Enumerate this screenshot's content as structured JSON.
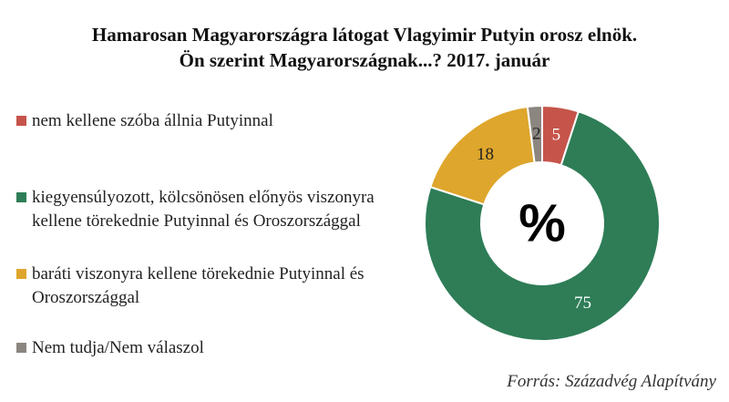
{
  "title": {
    "line1": "Hamarosan Magyarországra látogat Vlagyimir Putyin orosz elnök.",
    "line2": "Ön szerint Magyarországnak...? 2017. január"
  },
  "chart_data": {
    "type": "pie",
    "donut": true,
    "center_label": "%",
    "categories": [
      "nem kellene szóba állnia Putyinnal",
      "kiegyensúlyozott, kölcsönösen előnyös viszonyra kellene törekednie Putyinnal és Oroszországgal",
      "baráti viszonyra kellene törekednie Putyinnal és Oroszországgal",
      "Nem tudja/Nem válaszol"
    ],
    "values": [
      5,
      75,
      18,
      2
    ],
    "colors": [
      "#c6544a",
      "#2e7d57",
      "#dea62c",
      "#8c8680"
    ],
    "label_colors": [
      "#ffffff",
      "#ffffff",
      "#222222",
      "#222222"
    ],
    "legend_position": "left"
  },
  "source": "Forrás: Századvég Alapítvány"
}
